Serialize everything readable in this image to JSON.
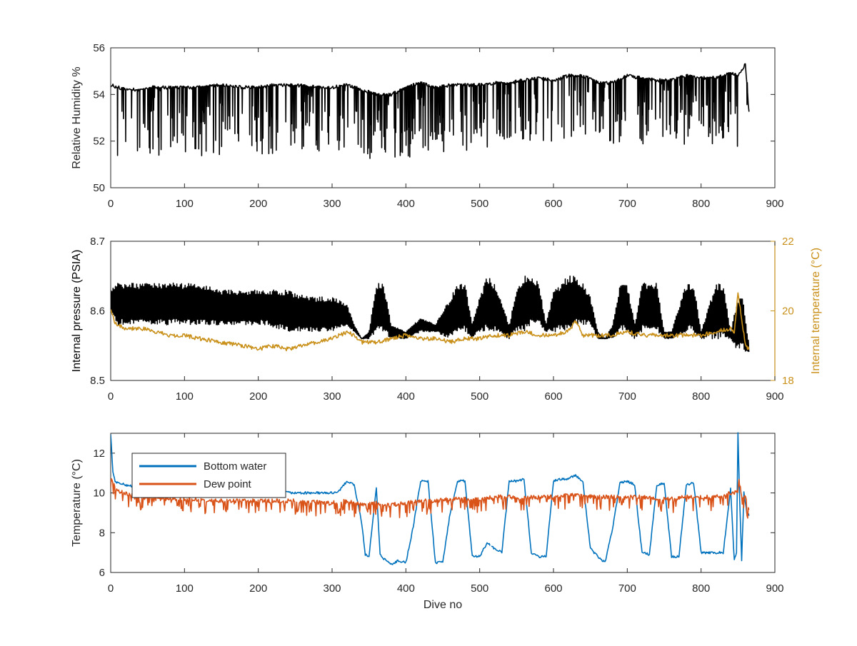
{
  "chart_data": [
    {
      "type": "line",
      "ylabel": "Relative Humidity %",
      "xlim": [
        0,
        900
      ],
      "ylim": [
        50,
        56
      ],
      "xticks": [
        "0",
        "100",
        "200",
        "300",
        "400",
        "500",
        "600",
        "700",
        "800",
        "900"
      ],
      "yticks": [
        "50",
        "52",
        "54",
        "56"
      ],
      "series": [
        {
          "color": "#000000",
          "x": [
            0,
            10,
            20,
            30,
            40,
            50,
            60,
            80,
            100,
            120,
            150,
            180,
            200,
            220,
            250,
            280,
            300,
            320,
            340,
            360,
            380,
            400,
            420,
            440,
            460,
            480,
            500,
            520,
            540,
            560,
            580,
            600,
            620,
            640,
            660,
            680,
            700,
            720,
            740,
            760,
            780,
            800,
            820,
            840,
            850,
            855,
            860,
            865
          ],
          "values": [
            54.4,
            54.3,
            54.2,
            54.2,
            54.2,
            54.3,
            54.3,
            54.3,
            54.3,
            54.3,
            54.4,
            54.3,
            54.3,
            54.4,
            54.4,
            54.3,
            54.3,
            54.4,
            54.2,
            54.0,
            54.0,
            54.3,
            54.5,
            54.3,
            54.4,
            54.4,
            54.4,
            54.5,
            54.5,
            54.6,
            54.7,
            54.6,
            54.8,
            54.8,
            54.5,
            54.5,
            54.8,
            54.7,
            54.6,
            54.6,
            54.8,
            54.7,
            54.7,
            54.9,
            54.8,
            55.0,
            55.3,
            53.2
          ],
          "dips_min": [
            51.4,
            51.3,
            51.4,
            51.3,
            51.4,
            51.3,
            51.4,
            51.2,
            51.4,
            51.3,
            51.4,
            51.5,
            51.2,
            51.3,
            51.3,
            51.4,
            51.5,
            51.4,
            51.3,
            51.2,
            51.1,
            51.2,
            51.6,
            51.6,
            51.4,
            51.5,
            51.5,
            51.8,
            51.6,
            51.7,
            52.0,
            51.8,
            52.0,
            52.2,
            51.7,
            51.8,
            51.7,
            51.8,
            52.0,
            52.2,
            51.8,
            51.8,
            51.7,
            51.8,
            51.7,
            52.0,
            52.2,
            52.2
          ]
        }
      ]
    },
    {
      "type": "line",
      "ylabel": "Internal pressure (PSIA)",
      "y2label": "Internal temperature (°C)",
      "xlim": [
        0,
        900
      ],
      "ylim": [
        8.5,
        8.7
      ],
      "y2lim": [
        18,
        22
      ],
      "xticks": [
        "0",
        "100",
        "200",
        "300",
        "400",
        "500",
        "600",
        "700",
        "800",
        "900"
      ],
      "yticks": [
        "8.5",
        "8.6",
        "8.7"
      ],
      "y2ticks": [
        "18",
        "20",
        "22"
      ],
      "series": [
        {
          "axis": "left",
          "color": "#000000",
          "x": [
            0,
            10,
            30,
            60,
            90,
            120,
            150,
            180,
            210,
            240,
            270,
            300,
            320,
            330,
            340,
            350,
            360,
            370,
            380,
            400,
            420,
            440,
            460,
            470,
            480,
            490,
            500,
            510,
            520,
            540,
            550,
            560,
            570,
            580,
            590,
            600,
            620,
            630,
            640,
            650,
            660,
            670,
            680,
            690,
            700,
            710,
            720,
            730,
            740,
            750,
            760,
            780,
            790,
            800,
            820,
            830,
            840,
            850,
            855,
            860,
            865
          ],
          "top": [
            8.63,
            8.64,
            8.64,
            8.64,
            8.64,
            8.64,
            8.63,
            8.63,
            8.63,
            8.63,
            8.62,
            8.62,
            8.61,
            8.58,
            8.56,
            8.57,
            8.64,
            8.64,
            8.58,
            8.57,
            8.59,
            8.58,
            8.62,
            8.64,
            8.64,
            8.58,
            8.62,
            8.65,
            8.64,
            8.58,
            8.63,
            8.65,
            8.65,
            8.64,
            8.58,
            8.63,
            8.65,
            8.65,
            8.64,
            8.62,
            8.57,
            8.56,
            8.58,
            8.64,
            8.64,
            8.58,
            8.64,
            8.64,
            8.64,
            8.57,
            8.57,
            8.64,
            8.64,
            8.57,
            8.64,
            8.64,
            8.57,
            8.62,
            8.63,
            8.59,
            8.55
          ],
          "bottom": [
            8.6,
            8.58,
            8.58,
            8.58,
            8.58,
            8.58,
            8.58,
            8.58,
            8.58,
            8.57,
            8.57,
            8.57,
            8.58,
            8.57,
            8.56,
            8.56,
            8.57,
            8.57,
            8.56,
            8.56,
            8.57,
            8.57,
            8.56,
            8.57,
            8.57,
            8.56,
            8.57,
            8.57,
            8.57,
            8.56,
            8.57,
            8.57,
            8.58,
            8.58,
            8.57,
            8.57,
            8.57,
            8.58,
            8.58,
            8.58,
            8.56,
            8.56,
            8.56,
            8.57,
            8.57,
            8.56,
            8.57,
            8.57,
            8.57,
            8.56,
            8.56,
            8.57,
            8.57,
            8.56,
            8.56,
            8.56,
            8.56,
            8.54,
            8.55,
            8.54,
            8.54
          ]
        },
        {
          "axis": "right",
          "color": "#C9901A",
          "x": [
            0,
            5,
            10,
            20,
            40,
            60,
            80,
            100,
            120,
            150,
            180,
            200,
            220,
            240,
            260,
            280,
            300,
            320,
            330,
            340,
            360,
            380,
            400,
            420,
            440,
            460,
            480,
            500,
            520,
            540,
            560,
            580,
            600,
            620,
            630,
            640,
            660,
            680,
            700,
            720,
            740,
            760,
            780,
            800,
            820,
            840,
            845,
            850,
            855,
            860,
            865
          ],
          "values": [
            20.1,
            19.7,
            19.6,
            19.5,
            19.5,
            19.4,
            19.3,
            19.3,
            19.2,
            19.1,
            19.0,
            18.9,
            19.0,
            18.9,
            19.0,
            19.1,
            19.2,
            19.4,
            19.3,
            19.1,
            19.1,
            19.2,
            19.3,
            19.2,
            19.2,
            19.1,
            19.2,
            19.2,
            19.3,
            19.3,
            19.4,
            19.3,
            19.3,
            19.4,
            19.7,
            19.3,
            19.3,
            19.3,
            19.4,
            19.3,
            19.3,
            19.3,
            19.3,
            19.3,
            19.4,
            19.5,
            19.4,
            20.5,
            19.8,
            19.0,
            18.9
          ]
        }
      ]
    },
    {
      "type": "line",
      "ylabel": "Temperature (°C)",
      "xlabel": "Dive no",
      "xlim": [
        0,
        900
      ],
      "ylim": [
        6,
        13
      ],
      "xticks": [
        "0",
        "100",
        "200",
        "300",
        "400",
        "500",
        "600",
        "700",
        "800",
        "900"
      ],
      "yticks": [
        "6",
        "8",
        "10",
        "12"
      ],
      "legend": {
        "position": "upper-left",
        "entries": [
          "Bottom water",
          "Dew point"
        ]
      },
      "series": [
        {
          "name": "Bottom water",
          "color": "#0072BD",
          "x": [
            0,
            3,
            6,
            10,
            20,
            40,
            60,
            100,
            150,
            200,
            250,
            300,
            310,
            320,
            330,
            340,
            345,
            350,
            355,
            360,
            365,
            370,
            380,
            390,
            400,
            410,
            420,
            430,
            440,
            450,
            460,
            470,
            480,
            490,
            500,
            510,
            520,
            530,
            540,
            550,
            560,
            570,
            580,
            590,
            600,
            610,
            620,
            630,
            640,
            650,
            660,
            670,
            680,
            690,
            700,
            710,
            720,
            730,
            740,
            750,
            760,
            770,
            780,
            790,
            800,
            810,
            820,
            830,
            840,
            845,
            848,
            850,
            852,
            855,
            858,
            862,
            865
          ],
          "values": [
            13.0,
            11.0,
            10.6,
            10.5,
            10.4,
            10.3,
            10.3,
            10.2,
            10.2,
            10.1,
            10.0,
            10.0,
            10.1,
            10.6,
            10.4,
            8.5,
            6.9,
            6.8,
            8.5,
            10.3,
            6.9,
            6.7,
            6.4,
            6.6,
            6.5,
            8.3,
            10.6,
            10.6,
            6.5,
            6.5,
            9.0,
            10.6,
            10.6,
            6.8,
            6.8,
            7.5,
            7.2,
            7.0,
            10.6,
            10.6,
            10.7,
            7.0,
            6.8,
            6.8,
            10.6,
            10.7,
            10.7,
            10.9,
            10.5,
            7.2,
            6.8,
            6.5,
            8.2,
            10.5,
            10.6,
            10.4,
            7.0,
            6.9,
            10.4,
            10.5,
            6.8,
            6.8,
            10.4,
            10.5,
            7.0,
            7.0,
            7.0,
            7.0,
            10.2,
            6.6,
            7.0,
            13.0,
            10.0,
            6.6,
            10.0,
            9.0,
            8.9
          ],
          "breaks": [
            515
          ]
        },
        {
          "name": "Dew point",
          "color": "#D95319",
          "x": [
            0,
            3,
            6,
            10,
            20,
            40,
            60,
            100,
            150,
            200,
            250,
            300,
            320,
            340,
            360,
            380,
            400,
            420,
            440,
            460,
            480,
            500,
            520,
            540,
            560,
            580,
            600,
            620,
            640,
            660,
            680,
            700,
            720,
            740,
            760,
            780,
            800,
            820,
            840,
            850,
            852,
            855,
            860,
            865
          ],
          "values": [
            10.9,
            10.5,
            10.3,
            10.1,
            10.0,
            9.8,
            9.8,
            9.7,
            9.6,
            9.6,
            9.6,
            9.5,
            9.6,
            9.4,
            9.5,
            9.4,
            9.5,
            9.6,
            9.6,
            9.7,
            9.7,
            9.7,
            9.8,
            9.8,
            9.8,
            9.8,
            9.8,
            9.9,
            9.9,
            9.8,
            9.8,
            9.8,
            9.8,
            9.7,
            9.7,
            9.8,
            9.8,
            9.8,
            10.0,
            10.1,
            10.8,
            9.8,
            9.9,
            9.1
          ],
          "noise_down": 0.7
        }
      ]
    }
  ]
}
